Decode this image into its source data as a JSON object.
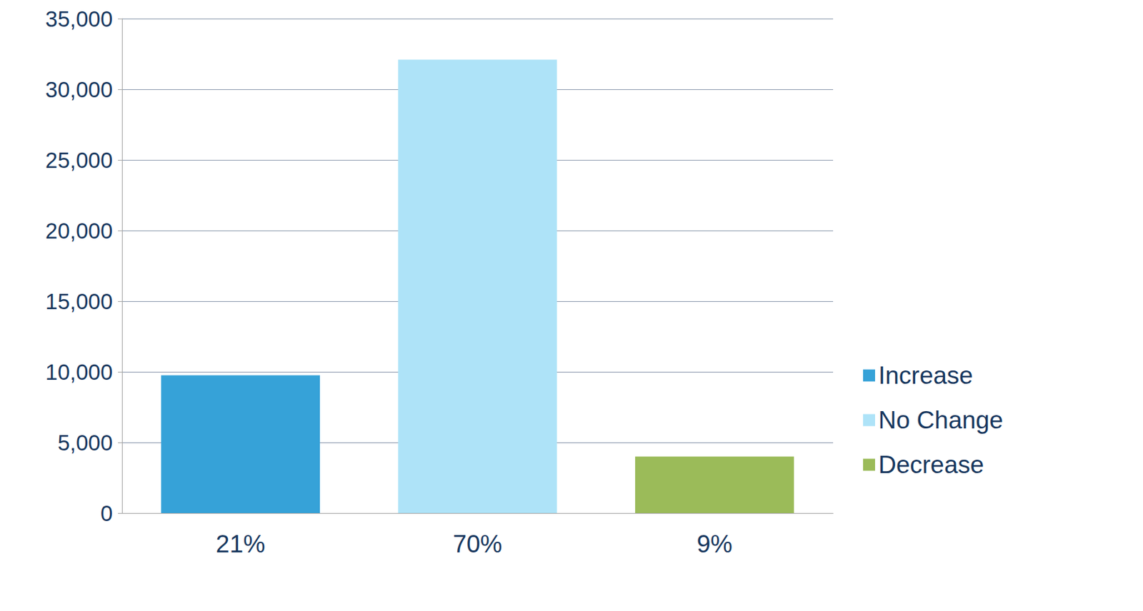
{
  "chart_data": {
    "type": "bar",
    "categories": [
      "21%",
      "70%",
      "9%"
    ],
    "series": [
      {
        "name": "Increase",
        "color": "#36a2d8",
        "values": [
          9750,
          null,
          null
        ]
      },
      {
        "name": "No Change",
        "color": "#aee3f8",
        "values": [
          null,
          32100,
          null
        ]
      },
      {
        "name": "Decrease",
        "color": "#9bbb59",
        "values": [
          null,
          null,
          4000
        ]
      }
    ],
    "ylim": [
      0,
      35000
    ],
    "yticks": [
      0,
      {
        "value": 5000,
        "label": "5,000"
      },
      {
        "value": 10000,
        "label": "10,000"
      },
      {
        "value": 15000,
        "label": "15,000"
      },
      {
        "value": 20000,
        "label": "20,000"
      },
      {
        "value": 25000,
        "label": "25,000"
      },
      {
        "value": 30000,
        "label": "30,000"
      },
      {
        "value": 35000,
        "label": "35,000"
      }
    ],
    "grid": true,
    "legend": "right"
  }
}
